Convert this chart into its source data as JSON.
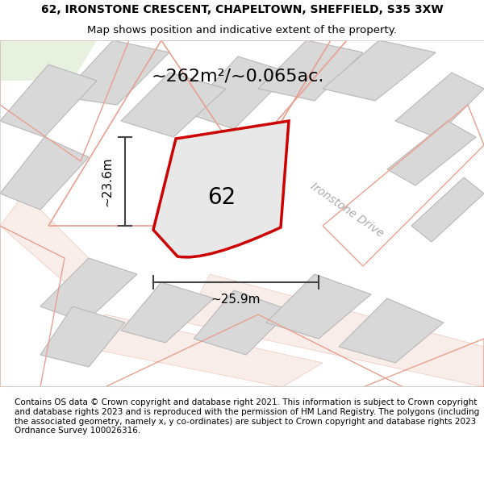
{
  "title_line1": "62, IRONSTONE CRESCENT, CHAPELTOWN, SHEFFIELD, S35 3XW",
  "title_line2": "Map shows position and indicative extent of the property.",
  "footer_text": "Contains OS data © Crown copyright and database right 2021. This information is subject to Crown copyright and database rights 2023 and is reproduced with the permission of HM Land Registry. The polygons (including the associated geometry, namely x, y co-ordinates) are subject to Crown copyright and database rights 2023 Ordnance Survey 100026316.",
  "area_label": "~262m²/~0.065ac.",
  "number_label": "62",
  "width_label": "~25.9m",
  "height_label": "~23.6m",
  "street_label": "Ironstone Drive",
  "bg_color": "#f5f5f0",
  "map_bg": "#ffffff",
  "road_color": "#f0c8c0",
  "building_color": "#d8d8d8",
  "building_outline": "#b0b0b0",
  "green_area": "#e8f0e0",
  "property_fill": "#e8e8e8",
  "property_outline": "#cc0000",
  "dimension_color": "#444444",
  "title_fontsize": 10,
  "footer_fontsize": 7.5
}
